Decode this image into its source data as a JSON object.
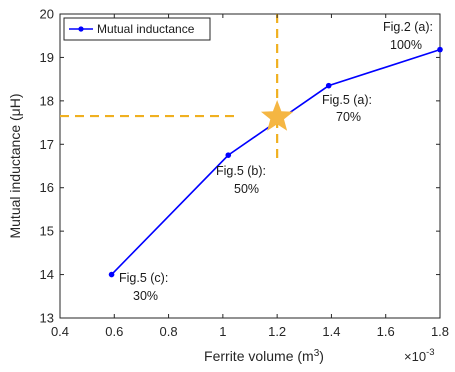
{
  "chart_data": {
    "type": "line",
    "xlabel": "Ferrite volume (m",
    "xlabel_sup": "3",
    "xlabel_tail": ")",
    "ylabel": "Mutual inductance (μH)",
    "x_multiplier": "×10",
    "x_multiplier_exp": "-3",
    "xlim": [
      0.4,
      1.8
    ],
    "ylim": [
      13,
      20
    ],
    "xticks": [
      "0.4",
      "0.6",
      "0.8",
      "1",
      "1.2",
      "1.4",
      "1.6",
      "1.8"
    ],
    "yticks": [
      "13",
      "14",
      "15",
      "16",
      "17",
      "18",
      "19",
      "20"
    ],
    "grid": false,
    "legend": {
      "position": "top-left"
    },
    "series": [
      {
        "name": "Mutual inductance",
        "color": "#0000ff",
        "x": [
          0.59,
          1.02,
          1.39,
          1.8
        ],
        "y": [
          14.0,
          16.75,
          18.35,
          19.18
        ]
      }
    ],
    "reference_point": {
      "x": 1.2,
      "y": 17.65,
      "color": "#f5b642",
      "line_color": "#f0b020"
    },
    "annotations": [
      {
        "id": "c",
        "line1": "Fig.5 (c):",
        "line2": "30%"
      },
      {
        "id": "b",
        "line1": "Fig.5 (b):",
        "line2": "50%"
      },
      {
        "id": "a5",
        "line1": "Fig.5 (a):",
        "line2": "70%"
      },
      {
        "id": "a2",
        "line1": "Fig.2 (a):",
        "line2": "100%"
      }
    ]
  }
}
